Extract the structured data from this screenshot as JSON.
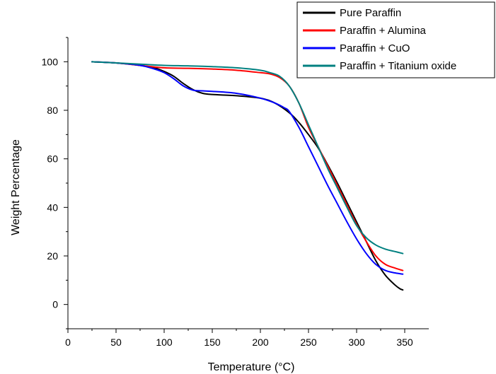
{
  "chart_data": {
    "type": "line",
    "xlabel": "Temperature (°C)",
    "ylabel": "Weight Percentage",
    "xlim": [
      0,
      375
    ],
    "ylim": [
      -10,
      110
    ],
    "xticks": [
      "0",
      "50",
      "100",
      "150",
      "200",
      "250",
      "300",
      "350"
    ],
    "yticks": [
      "0",
      "20",
      "40",
      "60",
      "80",
      "100"
    ],
    "grid": false,
    "legend_position": "top-right",
    "series": [
      {
        "name": "Pure Paraffin",
        "color": "#000000",
        "x": [
          25,
          50,
          75,
          90,
          100,
          110,
          120,
          130,
          140,
          150,
          175,
          200,
          215,
          230,
          240,
          250,
          260,
          270,
          280,
          290,
          300,
          310,
          320,
          330,
          340,
          345,
          348
        ],
        "y": [
          100,
          99.5,
          98.5,
          97.5,
          96,
          94,
          91,
          88.5,
          87,
          86.5,
          86,
          85,
          83,
          79,
          75,
          70,
          64.5,
          57.5,
          50,
          42,
          34,
          26,
          18,
          12,
          8,
          6.5,
          6
        ]
      },
      {
        "name": "Paraffin + Alumina",
        "color": "#ff0000",
        "x": [
          25,
          50,
          75,
          100,
          125,
          150,
          175,
          200,
          210,
          220,
          230,
          240,
          250,
          260,
          270,
          280,
          290,
          300,
          310,
          320,
          330,
          340,
          348
        ],
        "y": [
          100,
          99.5,
          98.5,
          97.5,
          97.3,
          97,
          96.5,
          95.5,
          95,
          93.5,
          90,
          83,
          73,
          65,
          57,
          49,
          41,
          33,
          26,
          20,
          16.5,
          15,
          14
        ]
      },
      {
        "name": "Paraffin + CuO",
        "color": "#0000ff",
        "x": [
          25,
          50,
          75,
          90,
          100,
          110,
          120,
          130,
          140,
          150,
          175,
          200,
          215,
          225,
          230,
          240,
          250,
          260,
          270,
          280,
          290,
          300,
          310,
          320,
          330,
          340,
          348
        ],
        "y": [
          100,
          99.5,
          98.5,
          97,
          95.5,
          93,
          90,
          88.3,
          88,
          87.8,
          87,
          85,
          83,
          81,
          79.5,
          73,
          65,
          57,
          49,
          41.5,
          34,
          27,
          21,
          16.5,
          14,
          13,
          12.5
        ]
      },
      {
        "name": "Paraffin + Titanium oxide",
        "color": "#008080",
        "x": [
          25,
          50,
          75,
          100,
          125,
          150,
          175,
          200,
          210,
          220,
          230,
          240,
          250,
          260,
          270,
          280,
          290,
          300,
          310,
          320,
          330,
          340,
          348
        ],
        "y": [
          100,
          99.5,
          99,
          98.5,
          98.3,
          98,
          97.5,
          96.5,
          95.5,
          94,
          90,
          83,
          74,
          65,
          56,
          48,
          40,
          32.5,
          27.5,
          24.5,
          22.8,
          21.8,
          21
        ]
      }
    ]
  }
}
